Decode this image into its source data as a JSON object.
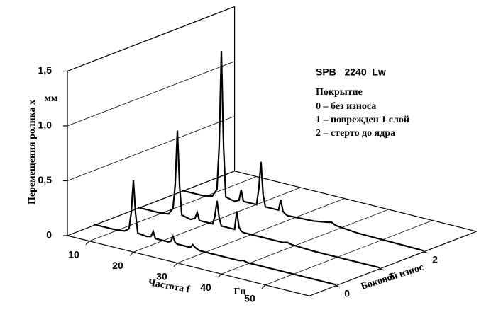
{
  "chart_data": {
    "type": "waterfall",
    "title": "SPB   2240  Lw",
    "legend_title": "Покрытие",
    "y_label": "Перемещения ролика x",
    "y_unit": "мм",
    "x_label": "Частота f",
    "x_unit": "Гц",
    "z_label": "Боковой износ",
    "x": [
      5,
      10,
      12,
      13,
      13.5,
      14,
      14.5,
      15,
      17,
      18,
      18.5,
      19,
      22,
      22.5,
      23,
      23.5,
      24,
      27,
      27.5,
      28,
      28.5,
      29,
      35,
      38,
      39,
      40,
      45,
      60
    ],
    "series": [
      {
        "name": "0 – без износа",
        "z": 0,
        "color": "#000000",
        "values": [
          0.01,
          0.01,
          0.02,
          0.05,
          0.2,
          0.5,
          0.2,
          0.03,
          0.02,
          0.03,
          0.08,
          0.02,
          0.02,
          0.03,
          0.08,
          0.03,
          0.02,
          0.02,
          0.05,
          0.03,
          0.02,
          0.01,
          0.01,
          0.01,
          0.02,
          0.01,
          0.01,
          0.01
        ]
      },
      {
        "name": "1 – поврежден 1 слой",
        "z": 1,
        "color": "#000000",
        "values": [
          0.01,
          0.01,
          0.02,
          0.08,
          0.3,
          0.8,
          0.3,
          0.04,
          0.02,
          0.04,
          0.1,
          0.03,
          0.03,
          0.1,
          0.25,
          0.1,
          0.03,
          0.03,
          0.2,
          0.06,
          0.03,
          0.02,
          0.02,
          0.02,
          0.03,
          0.02,
          0.01,
          0.01
        ]
      },
      {
        "name": "2 – стерто до ядра",
        "z": 2,
        "color": "#000000",
        "values": [
          0.01,
          0.01,
          0.03,
          0.1,
          0.5,
          1.37,
          0.5,
          0.05,
          0.03,
          0.05,
          0.15,
          0.05,
          0.05,
          0.2,
          0.45,
          0.15,
          0.05,
          0.05,
          0.15,
          0.05,
          0.03,
          0.02,
          0.03,
          0.05,
          0.06,
          0.04,
          0.02,
          0.01
        ]
      }
    ],
    "xlim": [
      5,
      60
    ],
    "xticks": [
      10,
      20,
      30,
      40,
      50
    ],
    "ylim": [
      0,
      1.5
    ],
    "yticks": [
      0,
      {
        "value": 0.5,
        "label": "0,5"
      },
      {
        "value": 1.0,
        "label": "1,0"
      },
      {
        "value": 1.5,
        "label": "1,5"
      }
    ],
    "zlim": [
      -0.6,
      3.2
    ],
    "zticks": [
      0,
      1,
      2
    ],
    "grid": true
  }
}
